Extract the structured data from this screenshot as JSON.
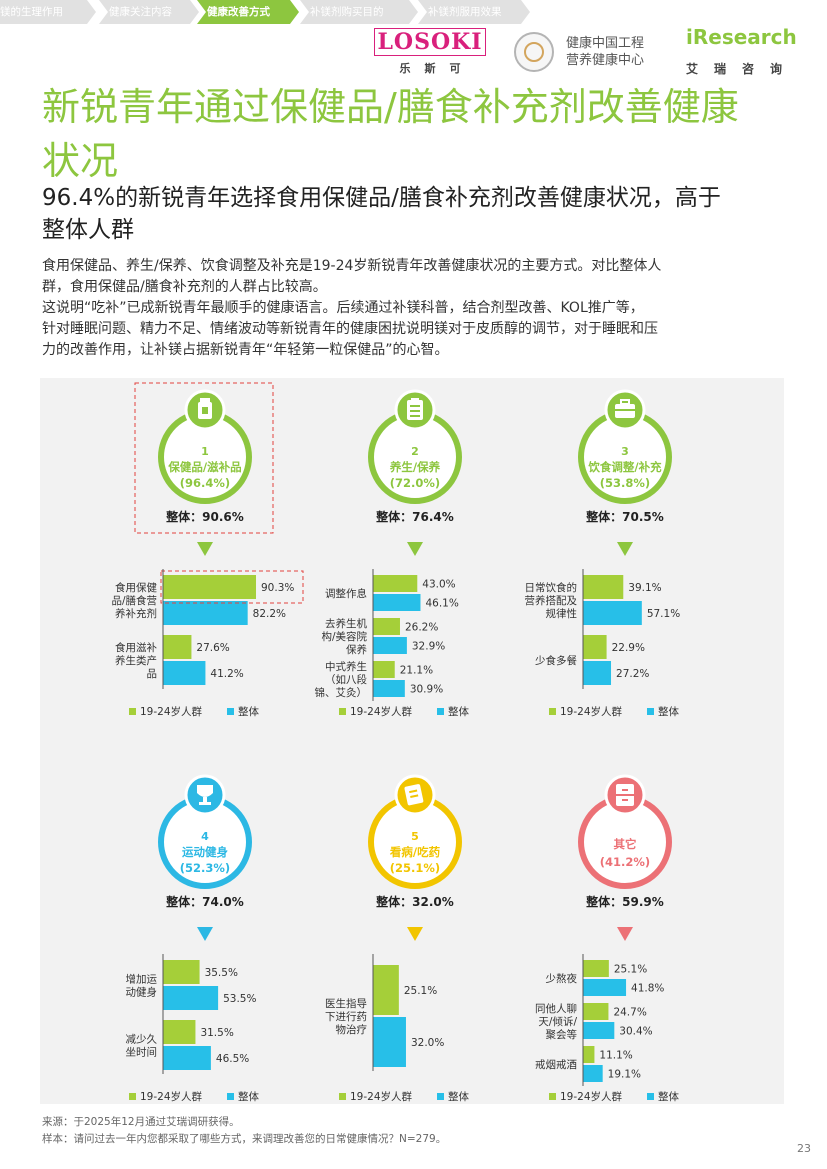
{
  "breadcrumbs": [
    {
      "label": "镁的生理作用",
      "active": false
    },
    {
      "label": "健康关注内容",
      "active": false
    },
    {
      "label": "健康改善方式",
      "active": true
    },
    {
      "label": "补镁剂购买目的",
      "active": false
    },
    {
      "label": "补镁剂服用效果",
      "active": false
    }
  ],
  "logos": {
    "losoki": "LOSOKI",
    "losoki_cn": "乐斯可",
    "health_center": [
      "健康中国工程",
      "营养健康中心"
    ],
    "iresearch": "iResearch",
    "iresearch_cn": "艾瑞咨询"
  },
  "title": [
    "新锐青年通过保健品/膳食补充剂改善健康",
    "状况"
  ],
  "subtitle": [
    "96.4%的新锐青年选择食用保健品/膳食补充剂改善健康状况，高于",
    "整体人群"
  ],
  "description": [
    "食用保健品、养生/保养、饮食调整及补充是19-24岁新锐青年改善健康状况的主要方式。对比整体人",
    "群，食用保健品/膳食补充剂的人群占比较高。",
    "这说明“吃补”已成新锐青年最顺手的健康语言。后续通过补镁科普，结合剂型改善、KOL推广等，",
    "针对睡眠问题、精力不足、情绪波动等新锐青年的健康困扰说明镁对于皮质醇的调节，对于睡眠和压",
    "力的改善作用，让补镁占据新锐青年“年轻第一粒保健品”的心智。"
  ],
  "colors": {
    "youth": "#a5cf39",
    "overall": "#27bfe8",
    "accent_green": "#8dc63f",
    "panel_bg": "#f2f2f2",
    "highlight_border": "#e1433f",
    "categories": [
      "#8dc63f",
      "#8dc63f",
      "#8dc63f",
      "#2cb8e4",
      "#f2c500",
      "#ec7176"
    ]
  },
  "chart_data": {
    "type": "bar",
    "orientation": "horizontal",
    "legend": [
      "19-24岁人群",
      "整体"
    ],
    "legend_placement": "bottom",
    "groups": [
      {
        "rank": "1",
        "name": "保健品/滋补品",
        "youth_pct": "(96.4%)",
        "overall_label": "整体：90.6%",
        "icon": "supplement-bottle-icon",
        "highlight": true,
        "items": [
          {
            "label": [
              "食用保健",
              "品/膳食营",
              "养补充剂"
            ],
            "youth": 90.3,
            "overall": 82.2,
            "youth_label": "90.3%",
            "overall_label": "82.2%",
            "highlight": true
          },
          {
            "label": [
              "食用滋补",
              "养生类产",
              "品"
            ],
            "youth": 27.6,
            "overall": 41.2,
            "youth_label": "27.6%",
            "overall_label": "41.2%"
          }
        ]
      },
      {
        "rank": "2",
        "name": "养生/保养",
        "youth_pct": "(72.0%)",
        "overall_label": "整体：76.4%",
        "icon": "clipboard-icon",
        "items": [
          {
            "label": [
              "调整作息"
            ],
            "youth": 43.0,
            "overall": 46.1,
            "youth_label": "43.0%",
            "overall_label": "46.1%"
          },
          {
            "label": [
              "去养生机",
              "构/美容院",
              "保养"
            ],
            "youth": 26.2,
            "overall": 32.9,
            "youth_label": "26.2%",
            "overall_label": "32.9%"
          },
          {
            "label": [
              "中式养生",
              "（如八段",
              "锦、艾灸）"
            ],
            "youth": 21.1,
            "overall": 30.9,
            "youth_label": "21.1%",
            "overall_label": "30.9%"
          }
        ]
      },
      {
        "rank": "3",
        "name": "饮食调整/补充",
        "youth_pct": "(53.8%)",
        "overall_label": "整体：70.5%",
        "icon": "lunchbox-icon",
        "items": [
          {
            "label": [
              "日常饮食的",
              "营养搭配及",
              "规律性"
            ],
            "youth": 39.1,
            "overall": 57.1,
            "youth_label": "39.1%",
            "overall_label": "57.1%"
          },
          {
            "label": [
              "少食多餐"
            ],
            "youth": 22.9,
            "overall": 27.2,
            "youth_label": "22.9%",
            "overall_label": "27.2%"
          }
        ]
      },
      {
        "rank": "4",
        "name": "运动健身",
        "youth_pct": "(52.3%)",
        "overall_label": "整体：74.0%",
        "icon": "trophy-icon",
        "items": [
          {
            "label": [
              "增加运",
              "动健身"
            ],
            "youth": 35.5,
            "overall": 53.5,
            "youth_label": "35.5%",
            "overall_label": "53.5%"
          },
          {
            "label": [
              "减少久",
              "坐时间"
            ],
            "youth": 31.5,
            "overall": 46.5,
            "youth_label": "31.5%",
            "overall_label": "46.5%"
          }
        ]
      },
      {
        "rank": "5",
        "name": "看病/吃药",
        "youth_pct": "(25.1%)",
        "overall_label": "整体：32.0%",
        "icon": "medicine-note-icon",
        "items": [
          {
            "label": [
              "医生指导",
              "下进行药",
              "物治疗"
            ],
            "youth": 25.1,
            "overall": 32.0,
            "youth_label": "25.1%",
            "overall_label": "32.0%"
          }
        ]
      },
      {
        "rank": "",
        "name": "其它",
        "youth_pct": "(41.2%)",
        "overall_label": "整体：59.9%",
        "icon": "cabinet-icon",
        "items": [
          {
            "label": [
              "少熬夜"
            ],
            "youth": 25.1,
            "overall": 41.8,
            "youth_label": "25.1%",
            "overall_label": "41.8%"
          },
          {
            "label": [
              "同他人聊",
              "天/倾诉/",
              "聚会等"
            ],
            "youth": 24.7,
            "overall": 30.4,
            "youth_label": "24.7%",
            "overall_label": "30.4%"
          },
          {
            "label": [
              "戒烟戒酒"
            ],
            "youth": 11.1,
            "overall": 19.1,
            "youth_label": "11.1%",
            "overall_label": "19.1%"
          }
        ]
      }
    ]
  },
  "footnotes": [
    "来源：于2025年12月通过艾瑞调研获得。",
    "样本：请问过去一年内您都采取了哪些方式，来调理改善您的日常健康情况？N=279。"
  ],
  "page_number": "23"
}
